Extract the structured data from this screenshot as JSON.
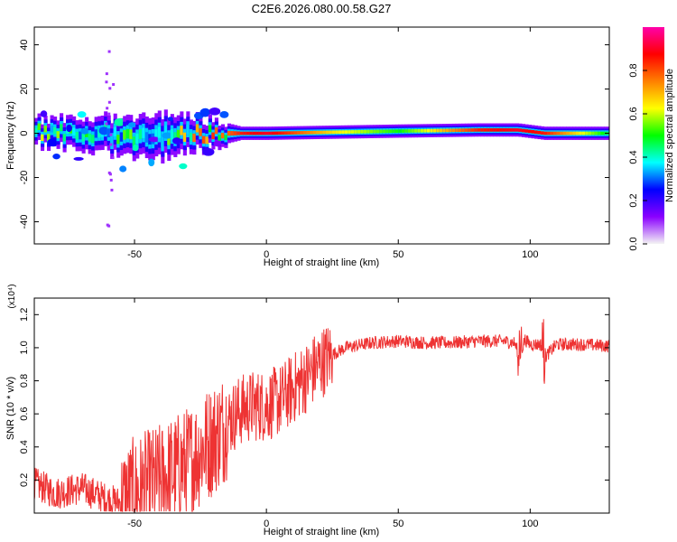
{
  "title": "C2E6.2026.080.00.58.G27",
  "colorbar": {
    "label": "Normalized spectral amplitude",
    "ticks": [
      "0.0",
      "0.2",
      "0.4",
      "0.6",
      "0.8"
    ],
    "tick_values": [
      0.0,
      0.2,
      0.4,
      0.6,
      0.8
    ],
    "range": [
      0,
      1
    ],
    "colors": [
      "#f4f4f4",
      "#8a00ff",
      "#0000ff",
      "#00ffff",
      "#00ff00",
      "#ffff00",
      "#ff8000",
      "#ff0000",
      "#ff00aa"
    ]
  },
  "chart_data": [
    {
      "type": "heatmap",
      "name": "spectrogram",
      "xlabel": "Height of straight line (km)",
      "ylabel": "Frequency (Hz)",
      "xlim": [
        -88,
        130
      ],
      "ylim": [
        -50,
        48
      ],
      "xticks": [
        -50,
        0,
        50,
        100
      ],
      "yticks": [
        -40,
        -20,
        0,
        20,
        40
      ],
      "grid": false,
      "description_of_content": "Energy concentrated near 0 Hz; broad noisy spread (about -20 to +10 Hz) for heights below -15 km; narrow, stable band from about -15 km upward with peak amplitude near 80-100 km",
      "band": [
        {
          "x": -85,
          "center": 0,
          "half_width": 6,
          "peak": 0.5
        },
        {
          "x": -60,
          "center": -1,
          "half_width": 8,
          "peak": 0.45
        },
        {
          "x": -40,
          "center": -2,
          "half_width": 10,
          "peak": 0.45
        },
        {
          "x": -20,
          "center": 0,
          "half_width": 6,
          "peak": 0.7
        },
        {
          "x": -10,
          "center": 0,
          "half_width": 3,
          "peak": 0.85
        },
        {
          "x": 0,
          "center": 0,
          "half_width": 3,
          "peak": 0.9
        },
        {
          "x": 25,
          "center": 0.5,
          "half_width": 3,
          "peak": 0.65
        },
        {
          "x": 50,
          "center": 1,
          "half_width": 3,
          "peak": 0.5
        },
        {
          "x": 80,
          "center": 1.5,
          "half_width": 3,
          "peak": 0.85
        },
        {
          "x": 95,
          "center": 1.5,
          "half_width": 3,
          "peak": 0.9
        },
        {
          "x": 105,
          "center": 0,
          "half_width": 3,
          "peak": 0.85
        },
        {
          "x": 130,
          "center": 0,
          "half_width": 3,
          "peak": 0.45
        }
      ]
    },
    {
      "type": "line",
      "name": "snr",
      "xlabel": "Height of straight line (km)",
      "ylabel": "SNR (10 * v/v)",
      "y_multiplier": "(x10⁴)",
      "xlim": [
        -88,
        130
      ],
      "ylim": [
        0,
        1.3
      ],
      "xticks": [
        -50,
        0,
        50,
        100
      ],
      "yticks": [
        0.2,
        0.4,
        0.6,
        0.8,
        1.0,
        1.2
      ],
      "grid": false,
      "color": "#ee3333",
      "series": [
        {
          "x": [
            -88,
            -80,
            -70,
            -60,
            -55,
            -50,
            -45,
            -40,
            -35,
            -30,
            -25,
            -20,
            -17,
            -15,
            -10,
            -5,
            0,
            5,
            10,
            15,
            20,
            25,
            30,
            40,
            50,
            60,
            70,
            80,
            90,
            94,
            96,
            98,
            100,
            104,
            106,
            110,
            120,
            130
          ],
          "values": [
            0.18,
            0.12,
            0.15,
            0.08,
            0.06,
            0.12,
            0.16,
            0.2,
            0.25,
            0.3,
            0.38,
            0.45,
            0.5,
            0.55,
            0.62,
            0.65,
            0.65,
            0.68,
            0.75,
            0.82,
            0.9,
            0.96,
            1.0,
            1.03,
            1.04,
            1.03,
            1.03,
            1.04,
            1.04,
            1.03,
            0.95,
            1.05,
            1.02,
            1.02,
            0.95,
            1.02,
            1.02,
            1.01
          ]
        }
      ]
    }
  ]
}
